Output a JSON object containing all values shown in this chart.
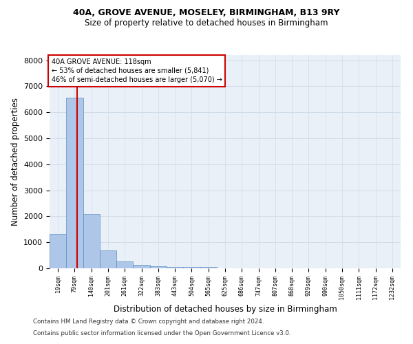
{
  "title1": "40A, GROVE AVENUE, MOSELEY, BIRMINGHAM, B13 9RY",
  "title2": "Size of property relative to detached houses in Birmingham",
  "xlabel": "Distribution of detached houses by size in Birmingham",
  "ylabel": "Number of detached properties",
  "footer1": "Contains HM Land Registry data © Crown copyright and database right 2024.",
  "footer2": "Contains public sector information licensed under the Open Government Licence v3.0.",
  "annotation_line1": "40A GROVE AVENUE: 118sqm",
  "annotation_line2": "← 53% of detached houses are smaller (5,841)",
  "annotation_line3": "46% of semi-detached houses are larger (5,070) →",
  "bar_color": "#aec6e8",
  "bar_edge_color": "#5a8fc0",
  "property_sqm": 118,
  "bins": [
    19,
    79,
    140,
    201,
    261,
    322,
    383,
    443,
    504,
    565,
    625,
    686,
    747,
    807,
    868,
    929,
    990,
    1050,
    1111,
    1172,
    1232
  ],
  "bin_labels": [
    "19sqm",
    "79sqm",
    "140sqm",
    "201sqm",
    "261sqm",
    "322sqm",
    "383sqm",
    "443sqm",
    "504sqm",
    "565sqm",
    "625sqm",
    "686sqm",
    "747sqm",
    "807sqm",
    "868sqm",
    "929sqm",
    "990sqm",
    "1050sqm",
    "1111sqm",
    "1172sqm",
    "1232sqm"
  ],
  "values": [
    1310,
    6560,
    2080,
    680,
    270,
    140,
    90,
    50,
    50,
    40,
    10,
    0,
    0,
    0,
    0,
    0,
    0,
    0,
    0,
    0
  ],
  "ylim": [
    0,
    8200
  ],
  "yticks": [
    0,
    1000,
    2000,
    3000,
    4000,
    5000,
    6000,
    7000,
    8000
  ],
  "grid_color": "#d0dce8",
  "bg_color": "#eaf0f8",
  "annotation_box_color": "#ffffff",
  "annotation_box_edge": "#cc0000",
  "red_line_color": "#cc0000"
}
